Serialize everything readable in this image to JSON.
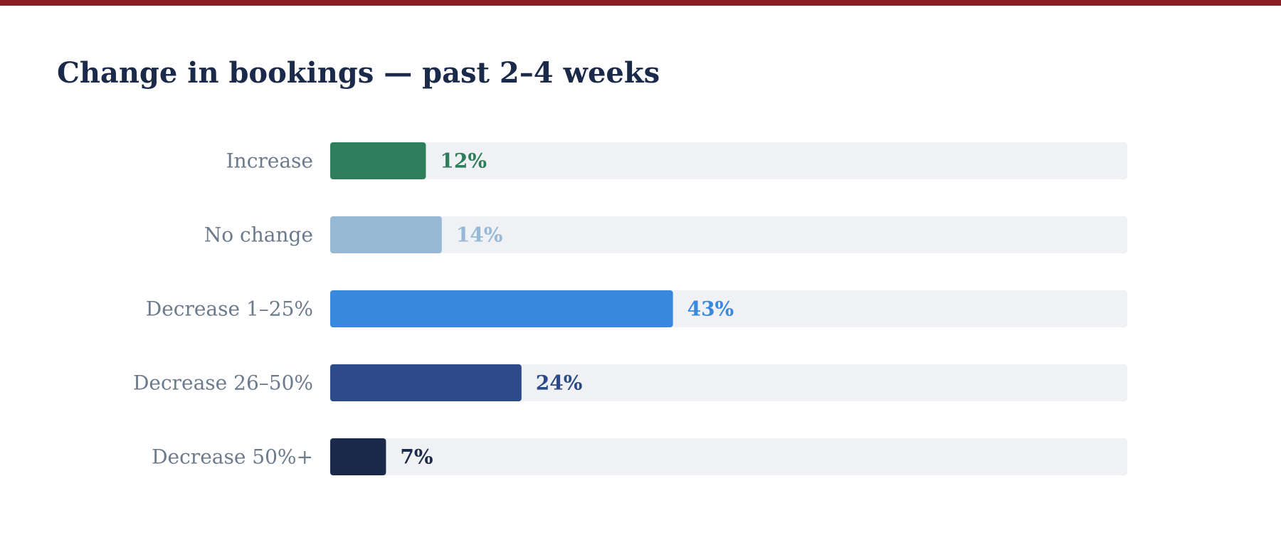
{
  "accent_rule_color": "#8b1d24",
  "track_color": "#f0f1f4",
  "chart_data": {
    "type": "bar",
    "orientation": "horizontal",
    "title": "Change in bookings — past 2–4 weeks",
    "categories": [
      "Increase",
      "No change",
      "Decrease 1–25%",
      "Decrease 26–50%",
      "Decrease 50%+"
    ],
    "values": [
      12,
      14,
      43,
      24,
      7
    ],
    "value_labels": [
      "12%",
      "14%",
      "43%",
      "24%",
      "7%"
    ],
    "colors": [
      "#2e7d5b",
      "#97b9d5",
      "#3889dd",
      "#2c4a87",
      "#1b2a4a"
    ],
    "unit": "%",
    "xlim": [
      0,
      100
    ],
    "grid": false,
    "legend": "none"
  }
}
